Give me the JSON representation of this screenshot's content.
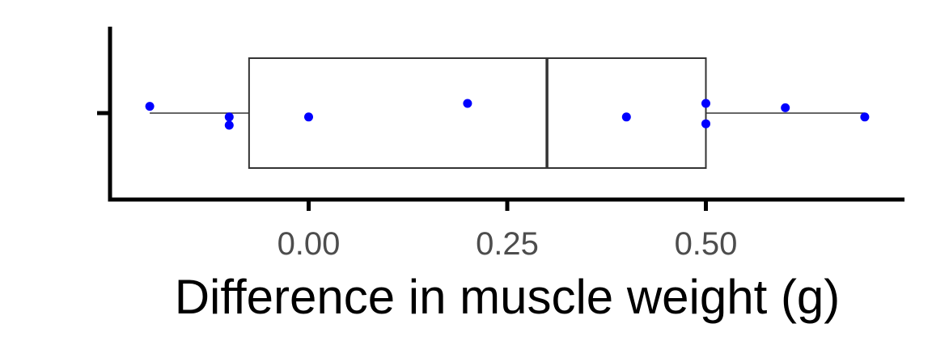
{
  "chart_data": {
    "type": "boxplot",
    "title": "",
    "xlabel": "Difference in muscle weight (g)",
    "ylabel": "",
    "xlim": [
      -0.25,
      0.75
    ],
    "x_ticks": [
      {
        "value": 0.0,
        "label": "0.00"
      },
      {
        "value": 0.25,
        "label": "0.25"
      },
      {
        "value": 0.5,
        "label": "0.50"
      }
    ],
    "grid": false,
    "legend": "none",
    "box": {
      "whisker_low": -0.2,
      "q1": -0.075,
      "median": 0.3,
      "q3": 0.5,
      "whisker_high": 0.7
    },
    "points": [
      {
        "x": -0.2,
        "jitter": 0.14
      },
      {
        "x": -0.1,
        "jitter": -0.08
      },
      {
        "x": -0.1,
        "jitter": -0.25
      },
      {
        "x": 0.0,
        "jitter": -0.08
      },
      {
        "x": 0.2,
        "jitter": 0.2
      },
      {
        "x": 0.4,
        "jitter": -0.08
      },
      {
        "x": 0.5,
        "jitter": 0.2
      },
      {
        "x": 0.5,
        "jitter": -0.22
      },
      {
        "x": 0.6,
        "jitter": 0.11
      },
      {
        "x": 0.7,
        "jitter": -0.08
      }
    ],
    "point_color": "#0000ff",
    "box_line_color": "#333333",
    "median_color": "#333333",
    "axis_color": "#000000"
  }
}
